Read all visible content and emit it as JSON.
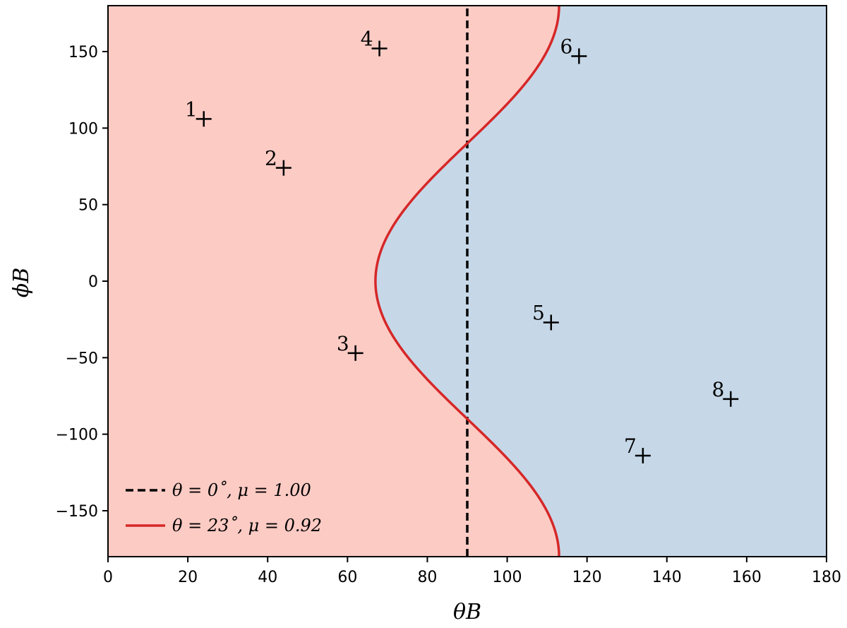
{
  "chart_data": {
    "type": "scatter",
    "xlabel": "θB",
    "ylabel": "ϕB",
    "xlim": [
      0,
      180
    ],
    "ylim": [
      -180,
      180
    ],
    "xticks": [
      0,
      20,
      40,
      60,
      80,
      100,
      120,
      140,
      160,
      180
    ],
    "yticks": [
      -150,
      -100,
      -50,
      0,
      50,
      100,
      150
    ],
    "grid": false,
    "legend_position": "lower-left",
    "regions": [
      {
        "name": "left-region",
        "color": "#fccbc4"
      },
      {
        "name": "right-region",
        "color": "#c6d8e8"
      }
    ],
    "series": [
      {
        "name": "θ = 0˚, μ = 1.00",
        "style": "dashed",
        "color": "#000000",
        "x": [
          90,
          90
        ],
        "y": [
          -180,
          180
        ]
      },
      {
        "name": "θ = 23˚, μ = 0.92",
        "style": "solid",
        "color": "#d62728",
        "curve": "θB = 90 − 23·cos(ϕB)"
      }
    ],
    "points": [
      {
        "label": "1",
        "x": 24,
        "y": 106
      },
      {
        "label": "2",
        "x": 44,
        "y": 74
      },
      {
        "label": "3",
        "x": 62,
        "y": -47
      },
      {
        "label": "4",
        "x": 68,
        "y": 152
      },
      {
        "label": "5",
        "x": 111,
        "y": -27
      },
      {
        "label": "6",
        "x": 118,
        "y": 147
      },
      {
        "label": "7",
        "x": 134,
        "y": -114
      },
      {
        "label": "8",
        "x": 156,
        "y": -77
      }
    ]
  }
}
